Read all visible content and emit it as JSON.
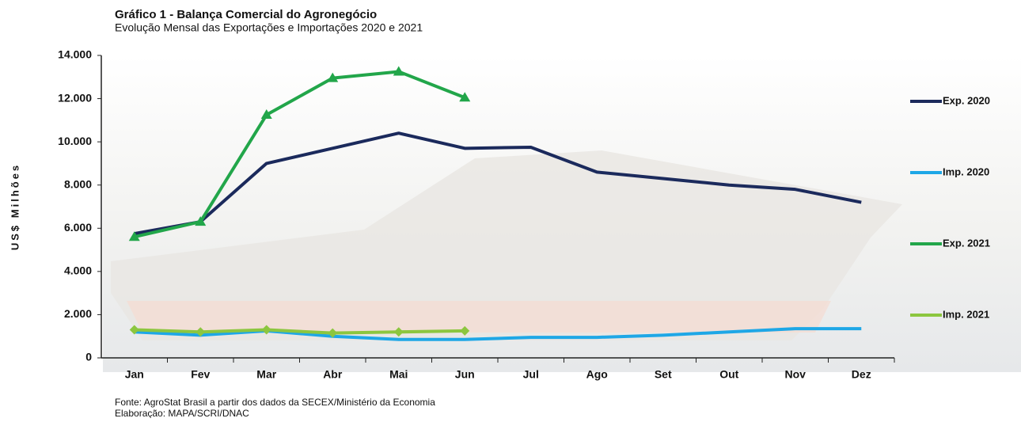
{
  "chart_data": {
    "type": "line",
    "title": "Gráfico 1 - Balança Comercial do Agronegócio",
    "subtitle": "Evolução Mensal das Exportações e Importações 2020 e 2021",
    "y_label": "US$ Milhões",
    "footnotes": [
      "Fonte: AgroStat Brasil a partir dos dados da SECEX/Ministério da Economia",
      "Elaboração: MAPA/SCRI/DNAC"
    ],
    "categories": [
      "Jan",
      "Fev",
      "Mar",
      "Abr",
      "Mai",
      "Jun",
      "Jul",
      "Ago",
      "Set",
      "Out",
      "Nov",
      "Dez"
    ],
    "ylim": [
      0,
      14000
    ],
    "yticks": [
      0,
      {
        "value": 2000,
        "label": "2.000"
      },
      {
        "value": 4000,
        "label": "4.000"
      },
      {
        "value": 6000,
        "label": "6.000"
      },
      {
        "value": 8000,
        "label": "8.000"
      },
      {
        "value": 10000,
        "label": "10.000"
      },
      {
        "value": 12000,
        "label": "12.000"
      },
      {
        "value": 14000,
        "label": "14.000"
      }
    ],
    "series": [
      {
        "name": "Exp. 2020",
        "color": "#1b2a5c",
        "marker": "none",
        "values": [
          5750,
          6300,
          9000,
          9700,
          10400,
          9700,
          9750,
          8600,
          8300,
          8000,
          7800,
          7200
        ]
      },
      {
        "name": "Imp. 2020",
        "color": "#1ea7e6",
        "marker": "none",
        "values": [
          1200,
          1050,
          1250,
          1000,
          850,
          850,
          950,
          950,
          1050,
          1200,
          1350,
          1350
        ]
      },
      {
        "name": "Exp. 2021",
        "color": "#22a64a",
        "marker": "triangle",
        "values": [
          5600,
          6300,
          11250,
          12950,
          13250,
          12050,
          null,
          null,
          null,
          null,
          null,
          null
        ]
      },
      {
        "name": "Imp. 2021",
        "color": "#8cc63f",
        "marker": "diamond",
        "values": [
          1300,
          1200,
          1300,
          1150,
          1200,
          1250,
          null,
          null,
          null,
          null,
          null,
          null
        ]
      }
    ]
  }
}
